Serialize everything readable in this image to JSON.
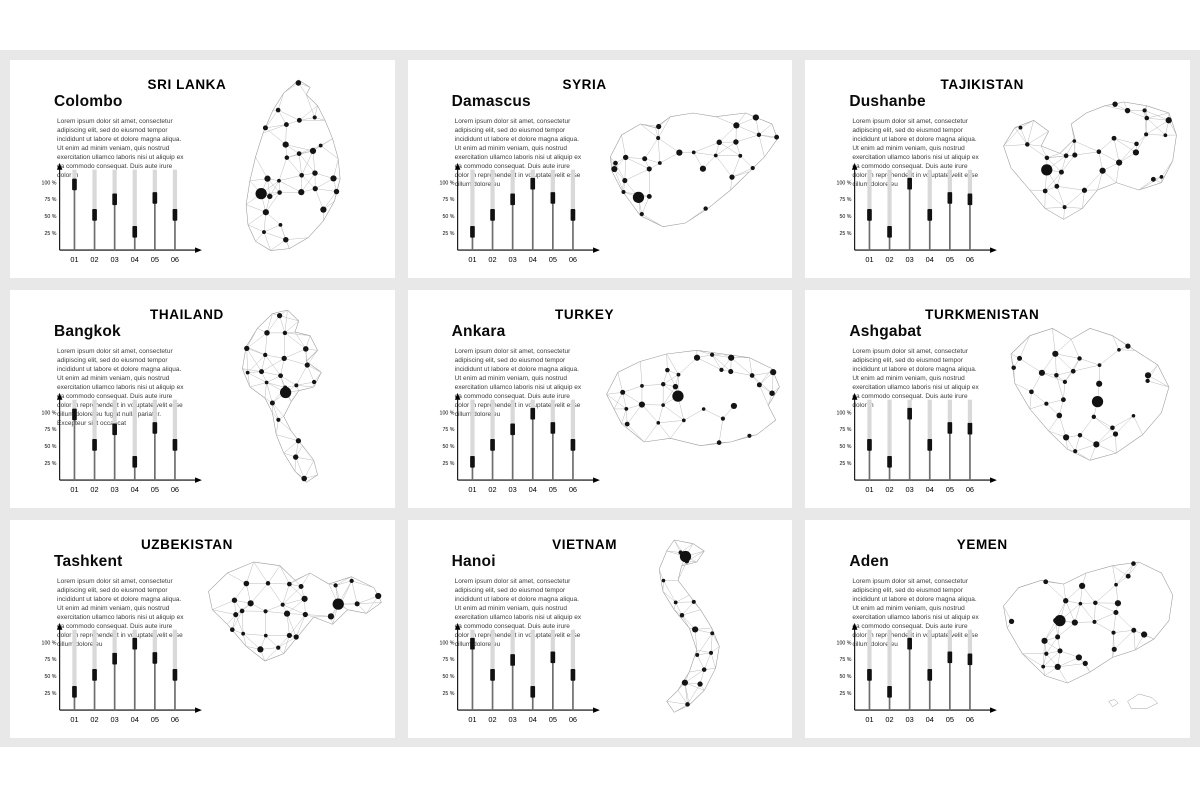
{
  "page": {
    "background": "#ffffff",
    "slide_background": "#e8e8e8",
    "panel_background": "#ffffff",
    "accent_black": "#111111",
    "mesh_line_color": "#b5b5b5",
    "bar_light_color": "#d9d9d9",
    "bar_dark_color": "#6e6e6e"
  },
  "chart_meta": {
    "categories": [
      "01",
      "02",
      "03",
      "04",
      "05",
      "06"
    ],
    "yticks": [
      {
        "label": "100 %",
        "value": 100
      },
      {
        "label": "75 %",
        "value": 75
      },
      {
        "label": "50 %",
        "value": 50
      },
      {
        "label": "25 %",
        "value": 25
      }
    ],
    "type": "bar-indicator",
    "ylim": [
      0,
      100
    ]
  },
  "panels": [
    {
      "country": "SRI LANKA",
      "city": "Colombo",
      "body": "Lorem ipsum dolor sit amet, consectetur adipiscing elit, sed do eiusmod tempor incididunt ut labore et dolore magna aliqua. Ut enim ad minim veniam, quis nostrud exercitation ullamco laboris nisi ut aliquip ex ea commodo consequat. Duis aute irure dolor in",
      "chart_values": [
        97,
        52,
        75,
        27,
        77,
        52
      ],
      "map": {
        "outline": [
          [
            52,
            2
          ],
          [
            58,
            6
          ],
          [
            56,
            10
          ],
          [
            62,
            16
          ],
          [
            66,
            24
          ],
          [
            70,
            34
          ],
          [
            73,
            45
          ],
          [
            74,
            56
          ],
          [
            71,
            68
          ],
          [
            65,
            79
          ],
          [
            57,
            88
          ],
          [
            47,
            94
          ],
          [
            37,
            95
          ],
          [
            29,
            90
          ],
          [
            25,
            81
          ],
          [
            24,
            70
          ],
          [
            26,
            57
          ],
          [
            29,
            44
          ],
          [
            33,
            31
          ],
          [
            38,
            19
          ],
          [
            44,
            9
          ]
        ],
        "capital": [
          32,
          64
        ],
        "islands": []
      }
    },
    {
      "country": "SYRIA",
      "city": "Damascus",
      "body": "Lorem ipsum dolor sit amet, consectetur adipiscing elit, sed do eiusmod tempor incididunt ut labore et dolore magna aliqua. Ut enim ad minim veniam, quis nostrud exercitation ullamco laboris nisi ut aliquip ex ea commodo consequat. Duis aute irure dolor in reprehenderit in voluptate velit esse cillum dolore eu",
      "chart_values": [
        27,
        52,
        75,
        98,
        77,
        52
      ],
      "map": {
        "outline": [
          [
            6,
            44
          ],
          [
            12,
            32
          ],
          [
            22,
            26
          ],
          [
            30,
            28
          ],
          [
            38,
            22
          ],
          [
            50,
            20
          ],
          [
            62,
            22
          ],
          [
            78,
            20
          ],
          [
            92,
            26
          ],
          [
            95,
            34
          ],
          [
            88,
            44
          ],
          [
            80,
            52
          ],
          [
            70,
            62
          ],
          [
            58,
            72
          ],
          [
            46,
            80
          ],
          [
            34,
            82
          ],
          [
            22,
            76
          ],
          [
            12,
            62
          ],
          [
            7,
            52
          ]
        ],
        "capital": [
          21,
          66
        ],
        "islands": []
      }
    },
    {
      "country": "TAJIKISTAN",
      "city": "Dushanbe",
      "body": "Lorem ipsum dolor sit amet, consectetur adipiscing elit, sed do eiusmod tempor incididunt ut labore et dolore magna aliqua. Ut enim ad minim veniam, quis nostrud exercitation ullamco laboris nisi ut aliquip ex ea commodo consequat. Duis aute irure dolor in reprehenderit in voluptate velit esse cillum dolore eu",
      "chart_values": [
        52,
        27,
        98,
        52,
        77,
        75
      ],
      "map": {
        "outline": [
          [
            4,
            38
          ],
          [
            10,
            28
          ],
          [
            20,
            24
          ],
          [
            28,
            30
          ],
          [
            24,
            38
          ],
          [
            34,
            42
          ],
          [
            42,
            34
          ],
          [
            40,
            26
          ],
          [
            48,
            20
          ],
          [
            58,
            16
          ],
          [
            68,
            14
          ],
          [
            80,
            16
          ],
          [
            92,
            20
          ],
          [
            96,
            32
          ],
          [
            94,
            46
          ],
          [
            88,
            58
          ],
          [
            76,
            62
          ],
          [
            64,
            58
          ],
          [
            54,
            62
          ],
          [
            46,
            72
          ],
          [
            36,
            78
          ],
          [
            26,
            72
          ],
          [
            18,
            62
          ],
          [
            8,
            50
          ]
        ],
        "capital": [
          27,
          51
        ],
        "islands": []
      }
    },
    {
      "country": "THAILAND",
      "city": "Bangkok",
      "body": "Lorem ipsum dolor sit amet, consectetur adipiscing elit, sed do eiusmod tempor incididunt ut labore et dolore magna aliqua. Ut enim ad minim veniam, quis nostrud exercitation ullamco laboris nisi ut aliquip ex ea commodo consequat. Duis aute irure dolor in reprehenderit in voluptate velit esse cillum dolore eu fugiat nulla pariatur. Excepteur sint occaecat",
      "chart_values": [
        97,
        52,
        75,
        27,
        77,
        52
      ],
      "map": {
        "outline": [
          [
            38,
            4
          ],
          [
            46,
            2
          ],
          [
            52,
            8
          ],
          [
            50,
            14
          ],
          [
            58,
            16
          ],
          [
            62,
            24
          ],
          [
            56,
            30
          ],
          [
            64,
            36
          ],
          [
            60,
            44
          ],
          [
            52,
            46
          ],
          [
            48,
            52
          ],
          [
            44,
            60
          ],
          [
            48,
            68
          ],
          [
            54,
            76
          ],
          [
            60,
            84
          ],
          [
            62,
            92
          ],
          [
            56,
            96
          ],
          [
            50,
            90
          ],
          [
            44,
            80
          ],
          [
            40,
            70
          ],
          [
            38,
            58
          ],
          [
            34,
            50
          ],
          [
            26,
            44
          ],
          [
            22,
            34
          ],
          [
            24,
            22
          ],
          [
            30,
            12
          ]
        ],
        "capital": [
          45,
          47
        ],
        "islands": []
      }
    },
    {
      "country": "TURKEY",
      "city": "Ankara",
      "body": "Lorem ipsum dolor sit amet, consectetur adipiscing elit, sed do eiusmod tempor incididunt ut labore et dolore magna aliqua. Ut enim ad minim veniam, quis nostrud exercitation ullamco laboris nisi ut aliquip ex ea commodo consequat. Duis aute irure dolor in reprehenderit in voluptate velit esse cillum dolore eu",
      "chart_values": [
        27,
        52,
        75,
        98,
        77,
        52
      ],
      "map": {
        "outline": [
          [
            4,
            48
          ],
          [
            10,
            36
          ],
          [
            22,
            30
          ],
          [
            36,
            26
          ],
          [
            52,
            24
          ],
          [
            66,
            26
          ],
          [
            80,
            28
          ],
          [
            92,
            34
          ],
          [
            96,
            44
          ],
          [
            90,
            54
          ],
          [
            94,
            62
          ],
          [
            84,
            70
          ],
          [
            70,
            74
          ],
          [
            54,
            76
          ],
          [
            38,
            72
          ],
          [
            24,
            74
          ],
          [
            12,
            64
          ],
          [
            8,
            56
          ]
        ],
        "capital": [
          42,
          49
        ],
        "islands": []
      }
    },
    {
      "country": "TURKMENISTAN",
      "city": "Ashgabat",
      "body": "Lorem ipsum dolor sit amet, consectetur adipiscing elit, sed do eiusmod tempor incididunt ut labore et dolore magna aliqua. Ut enim ad minim veniam, quis nostrud exercitation ullamco laboris nisi ut aliquip ex ea commodo consequat. Duis aute irure dolor in",
      "chart_values": [
        52,
        27,
        98,
        52,
        77,
        76
      ],
      "map": {
        "outline": [
          [
            8,
            26
          ],
          [
            18,
            16
          ],
          [
            30,
            12
          ],
          [
            40,
            18
          ],
          [
            50,
            12
          ],
          [
            62,
            16
          ],
          [
            74,
            24
          ],
          [
            86,
            32
          ],
          [
            92,
            44
          ],
          [
            88,
            58
          ],
          [
            78,
            70
          ],
          [
            64,
            80
          ],
          [
            50,
            84
          ],
          [
            38,
            78
          ],
          [
            28,
            68
          ],
          [
            18,
            56
          ],
          [
            10,
            42
          ]
        ],
        "capital": [
          54,
          52
        ],
        "islands": []
      }
    },
    {
      "country": "UZBEKISTAN",
      "city": "Tashkent",
      "body": "Lorem ipsum dolor sit amet, consectetur adipiscing elit, sed do eiusmod tempor incididunt ut labore et dolore magna aliqua. Ut enim ad minim veniam, quis nostrud exercitation ullamco laboris nisi ut aliquip ex ea commodo consequat. Duis aute irure dolor in reprehenderit in voluptate velit esse cillum dolore eu",
      "chart_values": [
        27,
        52,
        76,
        98,
        77,
        52
      ],
      "map": {
        "outline": [
          [
            4,
            30
          ],
          [
            14,
            20
          ],
          [
            28,
            14
          ],
          [
            42,
            16
          ],
          [
            50,
            24
          ],
          [
            58,
            20
          ],
          [
            68,
            26
          ],
          [
            80,
            22
          ],
          [
            92,
            28
          ],
          [
            96,
            36
          ],
          [
            88,
            42
          ],
          [
            78,
            40
          ],
          [
            70,
            48
          ],
          [
            60,
            44
          ],
          [
            52,
            54
          ],
          [
            44,
            64
          ],
          [
            34,
            68
          ],
          [
            24,
            60
          ],
          [
            14,
            48
          ],
          [
            6,
            40
          ]
        ],
        "capital": [
          73,
          37
        ],
        "islands": []
      }
    },
    {
      "country": "VIETNAM",
      "city": "Hanoi",
      "body": "Lorem ipsum dolor sit amet, consectetur adipiscing elit, sed do eiusmod tempor incididunt ut labore et dolore magna aliqua. Ut enim ad minim veniam, quis nostrud exercitation ullamco laboris nisi ut aliquip ex ea commodo consequat. Duis aute irure dolor in reprehenderit in voluptate velit esse cillum dolore eu",
      "chart_values": [
        98,
        52,
        74,
        27,
        78,
        52
      ],
      "map": {
        "outline": [
          [
            40,
            2
          ],
          [
            50,
            4
          ],
          [
            56,
            8
          ],
          [
            52,
            14
          ],
          [
            44,
            16
          ],
          [
            42,
            24
          ],
          [
            48,
            32
          ],
          [
            54,
            40
          ],
          [
            60,
            50
          ],
          [
            64,
            60
          ],
          [
            62,
            72
          ],
          [
            56,
            84
          ],
          [
            48,
            92
          ],
          [
            40,
            96
          ],
          [
            36,
            90
          ],
          [
            42,
            84
          ],
          [
            48,
            74
          ],
          [
            52,
            62
          ],
          [
            48,
            50
          ],
          [
            40,
            40
          ],
          [
            34,
            30
          ],
          [
            32,
            18
          ],
          [
            36,
            8
          ]
        ],
        "capital": [
          46,
          11
        ],
        "islands": []
      }
    },
    {
      "country": "YEMEN",
      "city": "Aden",
      "body": "Lorem ipsum dolor sit amet, consectetur adipiscing elit, sed do eiusmod tempor incididunt ut labore et dolore magna aliqua. Ut enim ad minim veniam, quis nostrud exercitation ullamco laboris nisi ut aliquip ex ea commodo consequat. Duis aute irure dolor in reprehenderit in voluptate velit esse cillum dolore eu",
      "chart_values": [
        52,
        27,
        98,
        52,
        78,
        75
      ],
      "map": {
        "outline": [
          [
            4,
            38
          ],
          [
            12,
            28
          ],
          [
            24,
            24
          ],
          [
            36,
            26
          ],
          [
            48,
            20
          ],
          [
            62,
            16
          ],
          [
            76,
            14
          ],
          [
            88,
            20
          ],
          [
            94,
            32
          ],
          [
            92,
            46
          ],
          [
            84,
            56
          ],
          [
            74,
            62
          ],
          [
            62,
            66
          ],
          [
            50,
            74
          ],
          [
            38,
            80
          ],
          [
            26,
            76
          ],
          [
            14,
            64
          ],
          [
            6,
            50
          ]
        ],
        "capital": [
          34,
          46
        ],
        "islands": [
          [
            [
              70,
              90
            ],
            [
              76,
              86
            ],
            [
              83,
              88
            ],
            [
              86,
              91
            ],
            [
              80,
              94
            ],
            [
              72,
              94
            ]
          ],
          [
            [
              60,
              90
            ],
            [
              63,
              89
            ],
            [
              65,
              91
            ],
            [
              62,
              93
            ]
          ]
        ]
      }
    }
  ]
}
